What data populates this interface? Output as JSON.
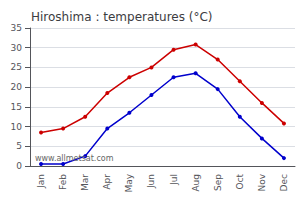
{
  "chart_data": {
    "type": "line",
    "title": "Hiroshima : temperatures (°C)",
    "categories": [
      "Jan",
      "Feb",
      "Mar",
      "Apr",
      "May",
      "Jun",
      "Jul",
      "Aug",
      "Sep",
      "Oct",
      "Nov",
      "Dec"
    ],
    "series": [
      {
        "color": "#cc0000",
        "values": [
          8.5,
          9.5,
          12.5,
          18.5,
          22.5,
          25.0,
          29.5,
          30.8,
          27.0,
          21.5,
          16.0,
          10.8
        ]
      },
      {
        "color": "#0000cc",
        "values": [
          0.5,
          0.5,
          2.5,
          9.5,
          13.5,
          18.0,
          22.5,
          23.5,
          19.5,
          12.5,
          7.0,
          2.0
        ]
      }
    ],
    "ylim": [
      0,
      35
    ],
    "yticks": [
      0,
      5,
      10,
      15,
      20,
      25,
      30,
      35
    ],
    "grid": true,
    "marker": "circle",
    "annotation": "www.allmetsat.com"
  }
}
